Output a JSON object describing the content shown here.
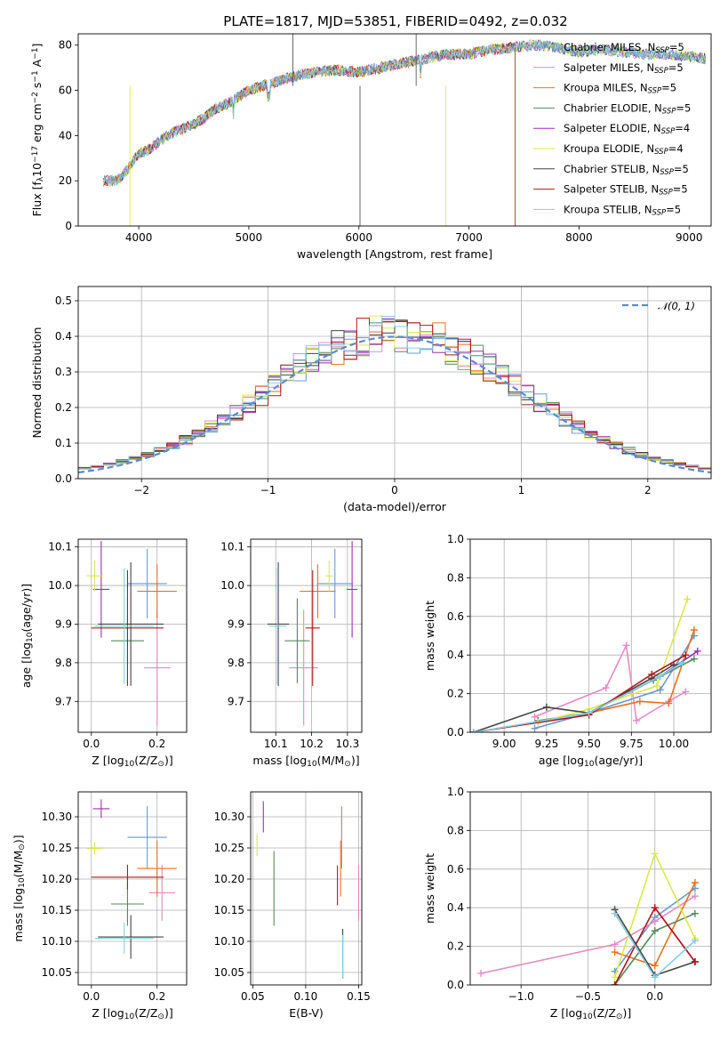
{
  "title": "PLATE=1817, MJD=53851, FIBERID=0492, z=0.032",
  "colors": [
    "#6a9ad0",
    "#e58ac4",
    "#e8721c",
    "#548a5a",
    "#9b2fb8",
    "#d8ea4a",
    "#444444",
    "#b01818",
    "#86cde0"
  ],
  "chart_data": [
    {
      "id": "spectrum",
      "type": "line",
      "xlabel": "wavelength [Angstrom, rest frame]",
      "ylabel": "Flux [f$_\\lambda$10$^{-17}$ erg cm$^{-2}$ s$^{-1}$ A$^{-1}$]",
      "ylabel_parts": {
        "pre": "Flux [f",
        "sub1": "λ",
        "mid": "10",
        "sup1": "−17",
        "post1": " erg cm",
        "sup2": "−2",
        "post2": " s",
        "sup3": "−1",
        "post3": " A",
        "sup4": "−1",
        "end": "]"
      },
      "xlim": [
        3450,
        9200
      ],
      "ylim": [
        0,
        85
      ],
      "xticks": [
        4000,
        5000,
        6000,
        7000,
        8000,
        9000
      ],
      "yticks": [
        0,
        20,
        40,
        60,
        80
      ],
      "grid": false,
      "legend_position": "top-right",
      "x": [
        3680,
        3800,
        3900,
        4000,
        4100,
        4200,
        4300,
        4400,
        4500,
        4600,
        4700,
        4800,
        4900,
        5000,
        5200,
        5400,
        5600,
        5800,
        6000,
        6200,
        6400,
        6600,
        6800,
        7000,
        7200,
        7400,
        7600,
        7800,
        8000,
        8200,
        8400,
        8600,
        8800,
        9000,
        9150
      ],
      "y": [
        20,
        20,
        25,
        32,
        34,
        38,
        41,
        43,
        45,
        48,
        52,
        54,
        57,
        60,
        63,
        66,
        68,
        69,
        68,
        70,
        72,
        74,
        76,
        76,
        78,
        79,
        80,
        79,
        77,
        78,
        77,
        76,
        76,
        75,
        74
      ],
      "series": [
        {
          "name": "Chabrier MILES",
          "nssp": "5"
        },
        {
          "name": "Salpeter MILES",
          "nssp": "5"
        },
        {
          "name": "Kroupa MILES",
          "nssp": "5"
        },
        {
          "name": "Chabrier ELODIE",
          "nssp": "5"
        },
        {
          "name": "Salpeter ELODIE",
          "nssp": "4"
        },
        {
          "name": "Kroupa ELODIE",
          "nssp": "4"
        },
        {
          "name": "Chabrier STELIB",
          "nssp": "5"
        },
        {
          "name": "Salpeter STELIB",
          "nssp": "5"
        },
        {
          "name": "Kroupa STELIB",
          "nssp": "5"
        }
      ],
      "legend_suffix": "N",
      "legend_sub": "SSP"
    },
    {
      "id": "residuals",
      "type": "histogram",
      "xlabel": "(data-model)/error",
      "ylabel": "Normed distribution",
      "xlim": [
        -2.5,
        2.5
      ],
      "ylim": [
        0,
        0.54
      ],
      "xticks": [
        -2,
        -1,
        0,
        1,
        2
      ],
      "yticks": [
        0.0,
        0.1,
        0.2,
        0.3,
        0.4,
        0.5
      ],
      "grid": true,
      "bin_width": 0.1,
      "reference_curve": "𝒩(0, 1)",
      "legend_position": "top-right"
    },
    {
      "id": "age-vs-z",
      "type": "errorbar",
      "xlabel": "Z [log$_{10}$(Z/Z$_\\odot$)]",
      "ylabel": "age [log$_{10}$(age/yr)]",
      "xlim": [
        -0.04,
        0.29
      ],
      "ylim": [
        9.62,
        10.12
      ],
      "xticks": [
        0.0,
        0.2
      ],
      "yticks": [
        9.7,
        9.8,
        9.9,
        10.0,
        10.1
      ],
      "grid": true,
      "points": [
        {
          "x": 0.17,
          "y": 10.005,
          "xerr": 0.06,
          "yerr": 0.09
        },
        {
          "x": 0.2,
          "y": 9.787,
          "xerr": 0.04,
          "yerr": 0.15
        },
        {
          "x": 0.2,
          "y": 9.985,
          "xerr": 0.06,
          "yerr": 0.07
        },
        {
          "x": 0.11,
          "y": 9.857,
          "xerr": 0.05,
          "yerr": 0.11
        },
        {
          "x": 0.03,
          "y": 9.99,
          "xerr": 0.025,
          "yerr": 0.125
        },
        {
          "x": 0.01,
          "y": 10.025,
          "xerr": 0.025,
          "yerr": 0.04
        },
        {
          "x": 0.12,
          "y": 9.9,
          "xerr": 0.1,
          "yerr": 0.16
        },
        {
          "x": 0.11,
          "y": 9.89,
          "xerr": 0.11,
          "yerr": 0.15
        },
        {
          "x": 0.1,
          "y": 9.895,
          "xerr": 0.09,
          "yerr": 0.15
        }
      ]
    },
    {
      "id": "age-vs-mass",
      "type": "errorbar",
      "xlabel": "mass [log$_{10}$(M/M$_\\odot$)]",
      "ylabel": "",
      "xlim": [
        10.03,
        10.34
      ],
      "ylim": [
        9.62,
        10.12
      ],
      "xticks": [
        10.1,
        10.2,
        10.3
      ],
      "yticks": [
        9.7,
        9.8,
        9.9,
        10.0,
        10.1
      ],
      "grid": true,
      "points": [
        {
          "x": 10.265,
          "y": 10.005,
          "xerr": 0.05,
          "yerr": 0.09
        },
        {
          "x": 10.178,
          "y": 9.787,
          "xerr": 0.04,
          "yerr": 0.15
        },
        {
          "x": 10.217,
          "y": 9.985,
          "xerr": 0.05,
          "yerr": 0.07
        },
        {
          "x": 10.16,
          "y": 9.857,
          "xerr": 0.035,
          "yerr": 0.11
        },
        {
          "x": 10.313,
          "y": 9.99,
          "xerr": 0.015,
          "yerr": 0.125
        },
        {
          "x": 10.249,
          "y": 10.025,
          "xerr": 0.01,
          "yerr": 0.04
        },
        {
          "x": 10.107,
          "y": 9.9,
          "xerr": 0.03,
          "yerr": 0.16
        },
        {
          "x": 10.203,
          "y": 9.89,
          "xerr": 0.02,
          "yerr": 0.15
        },
        {
          "x": 10.105,
          "y": 9.895,
          "xerr": 0.025,
          "yerr": 0.15
        }
      ]
    },
    {
      "id": "mass-weight-vs-age",
      "type": "line",
      "xlabel": "age [log$_{10}$(age/yr)]",
      "ylabel": "mass weight",
      "xlim": [
        8.8,
        10.22
      ],
      "ylim": [
        0,
        1
      ],
      "xticks": [
        9.0,
        9.25,
        9.5,
        9.75,
        10.0
      ],
      "yticks": [
        0.0,
        0.2,
        0.4,
        0.6,
        0.8,
        1.0
      ],
      "grid": true,
      "series": [
        {
          "x": [
            9.18,
            9.5,
            9.92,
            10.12
          ],
          "y": [
            0.02,
            0.1,
            0.22,
            0.5
          ]
        },
        {
          "x": [
            9.18,
            9.6,
            9.72,
            9.78,
            9.97,
            10.07
          ],
          "y": [
            0.08,
            0.23,
            0.45,
            0.06,
            0.16,
            0.21
          ]
        },
        {
          "x": [
            9.5,
            9.8,
            9.97,
            10.12
          ],
          "y": [
            0.1,
            0.16,
            0.15,
            0.53
          ]
        },
        {
          "x": [
            9.2,
            9.5,
            9.88,
            10.12
          ],
          "y": [
            0.06,
            0.1,
            0.27,
            0.38
          ]
        },
        {
          "x": [
            9.5,
            9.92,
            10.14
          ],
          "y": [
            0.1,
            0.29,
            0.42
          ]
        },
        {
          "x": [
            9.2,
            9.5,
            9.9,
            10.08
          ],
          "y": [
            0.05,
            0.12,
            0.24,
            0.69
          ]
        },
        {
          "x": [
            8.82,
            9.25,
            9.5,
            9.87,
            10.0
          ],
          "y": [
            0.0,
            0.13,
            0.1,
            0.28,
            0.35
          ]
        },
        {
          "x": [
            8.82,
            9.5,
            9.87,
            10.07
          ],
          "y": [
            0.0,
            0.09,
            0.3,
            0.4
          ]
        },
        {
          "x": [
            8.82,
            9.5,
            9.92,
            10.05
          ],
          "y": [
            0.0,
            0.1,
            0.29,
            0.36
          ]
        }
      ]
    },
    {
      "id": "mass-vs-z",
      "type": "errorbar",
      "xlabel": "Z [log$_{10}$(Z/Z$_\\odot$)]",
      "ylabel": "mass [log$_{10}$(M/M$_\\odot$)]",
      "xlim": [
        -0.04,
        0.29
      ],
      "ylim": [
        10.03,
        10.34
      ],
      "xticks": [
        0.0,
        0.2
      ],
      "yticks": [
        10.05,
        10.1,
        10.15,
        10.2,
        10.25,
        10.3
      ],
      "grid": true,
      "points": [
        {
          "x": 0.17,
          "y": 10.267,
          "xerr": 0.06,
          "yerr": 0.05
        },
        {
          "x": 0.215,
          "y": 10.178,
          "xerr": 0.04,
          "yerr": 0.045
        },
        {
          "x": 0.2,
          "y": 10.217,
          "xerr": 0.06,
          "yerr": 0.045
        },
        {
          "x": 0.11,
          "y": 10.16,
          "xerr": 0.05,
          "yerr": 0.035
        },
        {
          "x": 0.03,
          "y": 10.313,
          "xerr": 0.025,
          "yerr": 0.015
        },
        {
          "x": 0.01,
          "y": 10.249,
          "xerr": 0.025,
          "yerr": 0.01
        },
        {
          "x": 0.12,
          "y": 10.107,
          "xerr": 0.1,
          "yerr": 0.035
        },
        {
          "x": 0.11,
          "y": 10.203,
          "xerr": 0.11,
          "yerr": 0.02
        },
        {
          "x": 0.1,
          "y": 10.105,
          "xerr": 0.09,
          "yerr": 0.025
        }
      ]
    },
    {
      "id": "mass-vs-ebv",
      "type": "errorbar",
      "xlabel": "E(B-V)",
      "ylabel": "",
      "xlim": [
        0.048,
        0.153
      ],
      "ylim": [
        10.03,
        10.34
      ],
      "xticks": [
        0.05,
        0.1,
        0.15
      ],
      "yticks": [
        10.05,
        10.1,
        10.15,
        10.2,
        10.25,
        10.3
      ],
      "grid": true,
      "points": [
        {
          "x": 0.134,
          "y": 10.267,
          "xerr": 0.0,
          "yerr": 0.05
        },
        {
          "x": 0.15,
          "y": 10.178,
          "xerr": 0.0,
          "yerr": 0.045
        },
        {
          "x": 0.133,
          "y": 10.217,
          "xerr": 0.0,
          "yerr": 0.045
        },
        {
          "x": 0.07,
          "y": 10.185,
          "xerr": 0.0,
          "yerr": 0.06
        },
        {
          "x": 0.06,
          "y": 10.3,
          "xerr": 0.0,
          "yerr": 0.025
        },
        {
          "x": 0.054,
          "y": 10.255,
          "xerr": 0.0,
          "yerr": 0.018
        },
        {
          "x": 0.135,
          "y": 10.08,
          "xerr": 0.0,
          "yerr": 0.04
        },
        {
          "x": 0.13,
          "y": 10.19,
          "xerr": 0.0,
          "yerr": 0.032
        },
        {
          "x": 0.135,
          "y": 10.075,
          "xerr": 0.0,
          "yerr": 0.035
        }
      ]
    },
    {
      "id": "mass-weight-vs-z",
      "type": "line",
      "xlabel": "Z [log$_{10}$(Z/Z$_\\odot$)]",
      "ylabel": "mass weight",
      "xlim": [
        -1.38,
        0.42
      ],
      "ylim": [
        0,
        1
      ],
      "xticks": [
        -1.0,
        -0.5,
        0.0
      ],
      "yticks": [
        0.0,
        0.2,
        0.4,
        0.6,
        0.8,
        1.0
      ],
      "grid": true,
      "series": [
        {
          "x": [
            -0.3,
            0.0,
            0.3
          ],
          "y": [
            0.07,
            0.35,
            0.5
          ]
        },
        {
          "x": [
            -1.3,
            -0.3,
            0.0,
            0.3
          ],
          "y": [
            0.06,
            0.21,
            0.33,
            0.46
          ]
        },
        {
          "x": [
            -0.3,
            0.0,
            0.3
          ],
          "y": [
            0.17,
            0.1,
            0.53
          ]
        },
        {
          "x": [
            -0.3,
            0.0,
            0.3
          ],
          "y": [
            0.0,
            0.28,
            0.37
          ]
        },
        {
          "x": [
            0.0,
            0.3
          ],
          "y": [
            0.4,
            0.12
          ]
        },
        {
          "x": [
            -0.3,
            0.0,
            0.3
          ],
          "y": [
            0.04,
            0.68,
            0.24
          ]
        },
        {
          "x": [
            -0.3,
            0.0,
            0.3
          ],
          "y": [
            0.39,
            0.05,
            0.12
          ]
        },
        {
          "x": [
            -0.3,
            0.0,
            0.3
          ],
          "y": [
            0.0,
            0.4,
            0.12
          ]
        },
        {
          "x": [
            -0.3,
            0.0,
            0.3
          ],
          "y": [
            0.37,
            0.04,
            0.23
          ]
        }
      ]
    }
  ]
}
